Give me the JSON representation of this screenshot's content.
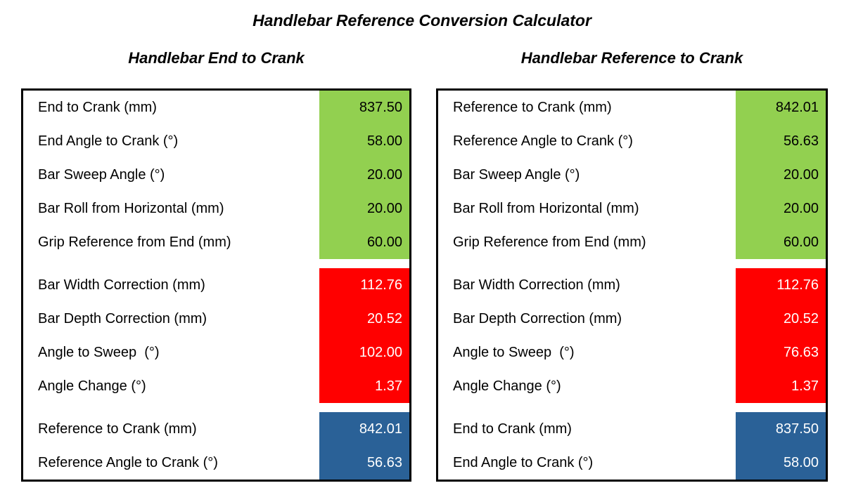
{
  "page": {
    "title": "Handlebar Reference Conversion Calculator"
  },
  "colors": {
    "input_bg": "#92D050",
    "correction_bg": "#FF0000",
    "output_bg": "#2A6197",
    "border": "#000000"
  },
  "panels": [
    {
      "heading": "Handlebar End to Crank",
      "sections": [
        {
          "type": "inputs",
          "rows": [
            {
              "label": "End to Crank (mm)",
              "value": "837.50"
            },
            {
              "label": "End Angle to Crank (°)",
              "value": "58.00"
            },
            {
              "label": "Bar Sweep Angle (°)",
              "value": "20.00"
            },
            {
              "label": "Bar Roll from Horizontal (mm)",
              "value": "20.00"
            },
            {
              "label": "Grip Reference from End (mm)",
              "value": "60.00"
            }
          ]
        },
        {
          "type": "corrections",
          "rows": [
            {
              "label": "Bar Width Correction (mm)",
              "value": "112.76"
            },
            {
              "label": "Bar Depth Correction (mm)",
              "value": "20.52"
            },
            {
              "label": "Angle to Sweep  (°)",
              "value": "102.00"
            },
            {
              "label": "Angle Change (°)",
              "value": "1.37"
            }
          ]
        },
        {
          "type": "outputs",
          "rows": [
            {
              "label": "Reference to Crank (mm)",
              "value": "842.01"
            },
            {
              "label": "Reference Angle to Crank (°)",
              "value": "56.63"
            }
          ]
        }
      ]
    },
    {
      "heading": "Handlebar Reference to Crank",
      "sections": [
        {
          "type": "inputs",
          "rows": [
            {
              "label": "Reference to Crank (mm)",
              "value": "842.01"
            },
            {
              "label": "Reference Angle to Crank (°)",
              "value": "56.63"
            },
            {
              "label": "Bar Sweep Angle (°)",
              "value": "20.00"
            },
            {
              "label": "Bar Roll from Horizontal (mm)",
              "value": "20.00"
            },
            {
              "label": "Grip Reference from End (mm)",
              "value": "60.00"
            }
          ]
        },
        {
          "type": "corrections",
          "rows": [
            {
              "label": "Bar Width Correction (mm)",
              "value": "112.76"
            },
            {
              "label": "Bar Depth Correction (mm)",
              "value": "20.52"
            },
            {
              "label": "Angle to Sweep  (°)",
              "value": "76.63"
            },
            {
              "label": "Angle Change (°)",
              "value": "1.37"
            }
          ]
        },
        {
          "type": "outputs",
          "rows": [
            {
              "label": "End to Crank (mm)",
              "value": "837.50"
            },
            {
              "label": "End Angle to Crank (°)",
              "value": "58.00"
            }
          ]
        }
      ]
    }
  ]
}
